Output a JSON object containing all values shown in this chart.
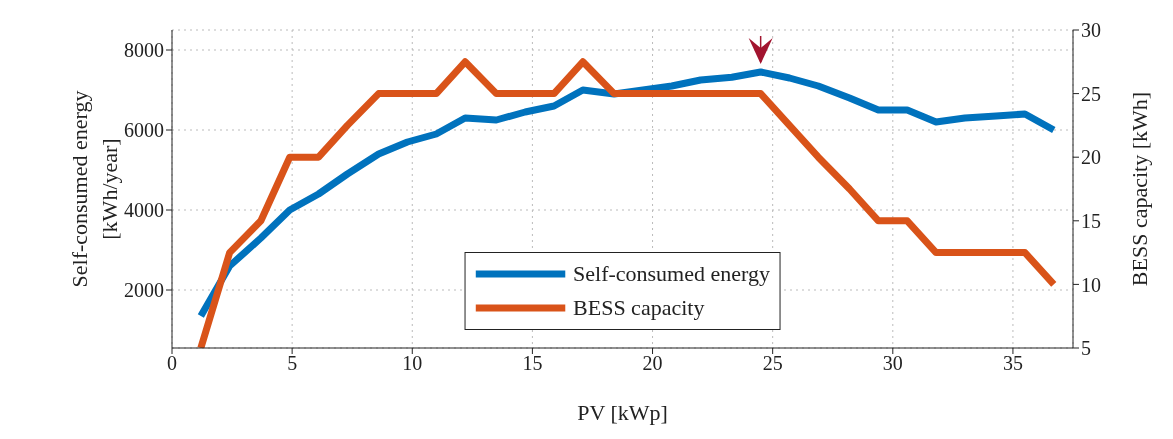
{
  "chart_data": {
    "type": "line",
    "xlabel": "PV [kWp]",
    "ylabel": "Self-consumed energy [kWh/year]",
    "y2label": "BESS capacity [kWh]",
    "x": [
      1.2,
      2.4,
      3.7,
      4.9,
      6.1,
      7.3,
      8.6,
      9.8,
      11.0,
      12.2,
      13.5,
      14.7,
      15.9,
      17.1,
      18.4,
      19.6,
      20.8,
      22.0,
      23.3,
      24.5,
      25.7,
      26.9,
      28.2,
      29.4,
      30.6,
      31.8,
      33.0,
      34.3,
      35.5,
      36.7
    ],
    "series": [
      {
        "name": "Self-consumed energy",
        "color": "#0072bd",
        "values": [
          1350,
          2600,
          3300,
          4000,
          4400,
          4900,
          5400,
          5700,
          5900,
          6300,
          6250,
          6450,
          6600,
          7000,
          6900,
          7000,
          7100,
          7250,
          7320,
          7450,
          7300,
          7100,
          6800,
          6500,
          6500,
          6200,
          6300,
          6350,
          6400,
          6000
        ]
      },
      {
        "name": "BESS capacity",
        "color": "#d95319",
        "axis": "y2",
        "values": [
          5,
          12.5,
          15,
          20,
          20,
          22.5,
          25,
          25,
          25,
          27.5,
          25,
          25,
          25,
          27.5,
          25,
          25,
          25,
          25,
          25,
          25,
          22.5,
          20,
          17.5,
          15,
          15,
          12.5,
          12.5,
          12.5,
          12.5,
          10
        ]
      }
    ],
    "xlim": [
      0,
      37.5
    ],
    "xticks": [
      0,
      5,
      10,
      15,
      20,
      25,
      30,
      35
    ],
    "ylim": [
      550,
      8500
    ],
    "yticks": [
      2000,
      4000,
      6000,
      8000
    ],
    "y2lim": [
      5,
      30
    ],
    "y2ticks": [
      5,
      10,
      15,
      20,
      25,
      30
    ],
    "grid": true,
    "legend": "bottom",
    "marker": "none",
    "line_style": "solid"
  }
}
